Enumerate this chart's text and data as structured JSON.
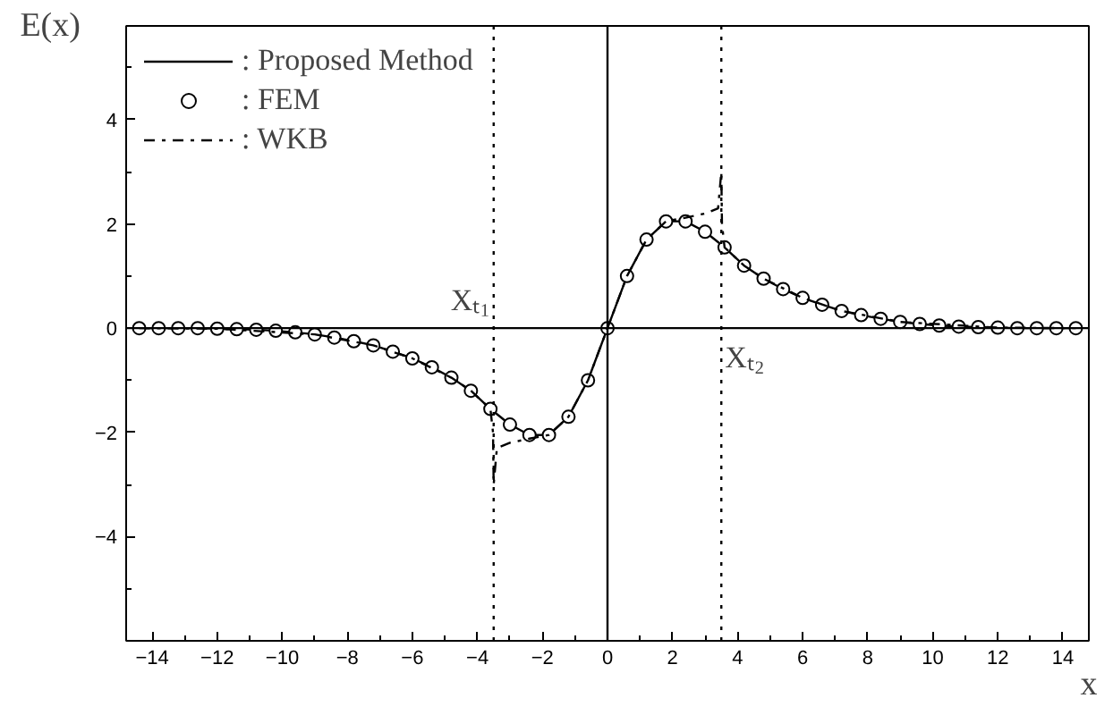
{
  "chart_data": {
    "type": "line",
    "xlabel": "x",
    "ylabel": "E(x)",
    "xlim": [
      -14.8,
      14.8
    ],
    "ylim": [
      -6,
      5.8
    ],
    "xticks": [
      -14,
      -12,
      -10,
      -8,
      -6,
      -4,
      -2,
      0,
      2,
      4,
      6,
      8,
      10,
      12,
      14
    ],
    "yticks": [
      -4,
      -2,
      0,
      2,
      4
    ],
    "grid": false,
    "legend": "top left",
    "x": [
      -14.4,
      -13.8,
      -13.2,
      -12.6,
      -12.0,
      -11.4,
      -10.8,
      -10.2,
      -9.6,
      -9.0,
      -8.4,
      -7.8,
      -7.2,
      -6.6,
      -6.0,
      -5.4,
      -4.8,
      -4.2,
      -3.6,
      -3.0,
      -2.4,
      -1.8,
      -1.2,
      -0.6,
      0,
      0.6,
      1.2,
      1.8,
      2.4,
      3.0,
      3.6,
      4.2,
      4.8,
      5.4,
      6.0,
      6.6,
      7.2,
      7.8,
      8.4,
      9.0,
      9.6,
      10.2,
      10.8,
      11.4,
      12.0,
      12.6,
      13.2,
      13.8,
      14.4
    ],
    "series": [
      {
        "name": ": Proposed Method",
        "type": "line",
        "color": "#000000",
        "line_style": "solid",
        "values": [
          0,
          0,
          0,
          0,
          -0.01,
          -0.02,
          -0.03,
          -0.05,
          -0.08,
          -0.12,
          -0.18,
          -0.25,
          -0.33,
          -0.45,
          -0.58,
          -0.75,
          -0.95,
          -1.2,
          -1.55,
          -1.85,
          -2.05,
          -2.05,
          -1.7,
          -1.0,
          0,
          1.0,
          1.7,
          2.05,
          2.05,
          1.85,
          1.55,
          1.2,
          0.95,
          0.75,
          0.58,
          0.45,
          0.33,
          0.25,
          0.18,
          0.12,
          0.08,
          0.05,
          0.03,
          0.02,
          0.01,
          0,
          0,
          0,
          0
        ]
      },
      {
        "name": ": FEM",
        "type": "scatter",
        "marker": "circle",
        "color": "#000000",
        "values": [
          0,
          0,
          0,
          0,
          -0.01,
          -0.02,
          -0.03,
          -0.05,
          -0.08,
          -0.12,
          -0.18,
          -0.25,
          -0.33,
          -0.45,
          -0.58,
          -0.75,
          -0.95,
          -1.2,
          -1.55,
          -1.85,
          -2.05,
          -2.05,
          -1.7,
          -1.0,
          0,
          1.0,
          1.7,
          2.05,
          2.05,
          1.85,
          1.55,
          1.2,
          0.95,
          0.75,
          0.58,
          0.45,
          0.33,
          0.25,
          0.18,
          0.12,
          0.08,
          0.05,
          0.03,
          0.02,
          0.01,
          0,
          0,
          0,
          0
        ]
      },
      {
        "name": ": WKB",
        "type": "line",
        "color": "#000000",
        "line_style": "dashdot",
        "x": [
          -14.4,
          -12.0,
          -9.0,
          -7.2,
          -6.0,
          -4.8,
          -4.2,
          -3.6,
          -3.52,
          -3.5,
          -3.4,
          -3.0,
          -2.4,
          -1.8,
          -1.2,
          -0.6,
          0,
          0.6,
          1.2,
          1.8,
          2.4,
          3.0,
          3.4,
          3.5,
          3.52,
          3.6,
          4.2,
          4.8,
          6.0,
          7.2,
          9.0,
          12.0,
          14.4
        ],
        "values": [
          0,
          -0.01,
          -0.12,
          -0.33,
          -0.58,
          -0.95,
          -1.2,
          -1.55,
          -2.0,
          -3.0,
          -2.3,
          -2.2,
          -2.12,
          -2.05,
          -1.7,
          -1.0,
          0,
          1.0,
          1.7,
          2.05,
          2.12,
          2.2,
          2.3,
          3.0,
          2.0,
          1.55,
          1.2,
          0.95,
          0.58,
          0.33,
          0.12,
          0.01,
          0
        ]
      }
    ],
    "ref_lines": [
      {
        "axis": "x",
        "value": 0,
        "color": "#000000",
        "line_style": "solid"
      },
      {
        "axis": "y",
        "value": 0,
        "color": "#000000",
        "line_style": "solid"
      },
      {
        "axis": "x",
        "value": -3.5,
        "label": "Xₜ₁",
        "color": "#000000",
        "line_style": "dotted"
      },
      {
        "axis": "x",
        "value": 3.5,
        "label": "Xₜ₂",
        "color": "#000000",
        "line_style": "dotted"
      }
    ]
  }
}
